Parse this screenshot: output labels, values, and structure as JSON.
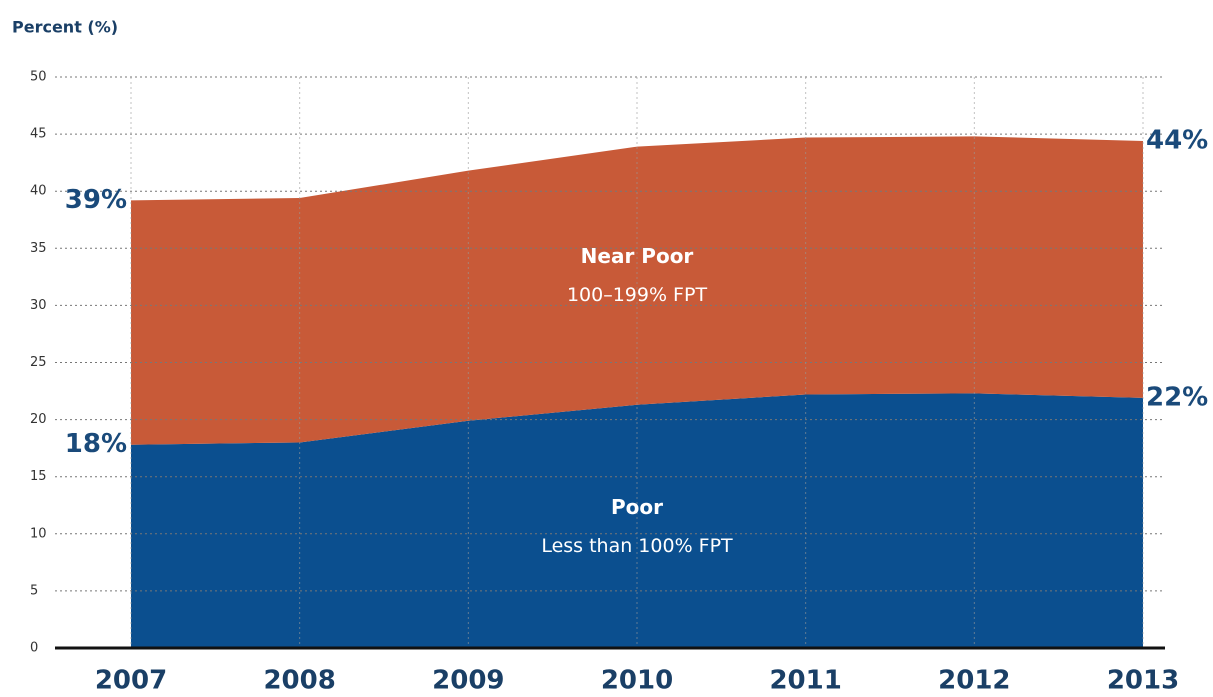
{
  "chart_data": {
    "type": "stacked_area",
    "y_axis_title": "Percent (%)",
    "categories": [
      "2007",
      "2008",
      "2009",
      "2010",
      "2011",
      "2012",
      "2013"
    ],
    "series": [
      {
        "name": "Poor",
        "sublabel": "Less than 100% FPT",
        "color": "#0b4f8f",
        "values": [
          17.8,
          18.0,
          19.9,
          21.3,
          22.2,
          22.3,
          21.9
        ],
        "value_labels": [
          "18%",
          null,
          null,
          null,
          null,
          null,
          "22%"
        ]
      },
      {
        "name": "Near Poor",
        "sublabel": "100–199% FPT",
        "color": "#c85a38",
        "values": [
          21.4,
          21.4,
          21.9,
          22.6,
          22.5,
          22.5,
          22.5
        ]
      }
    ],
    "total_labels": [
      "39%",
      null,
      null,
      null,
      null,
      null,
      "44%"
    ],
    "ylim": [
      0,
      50
    ],
    "yticks": [
      0,
      5,
      10,
      15,
      20,
      25,
      30,
      35,
      40,
      45,
      50
    ],
    "grid": true
  }
}
